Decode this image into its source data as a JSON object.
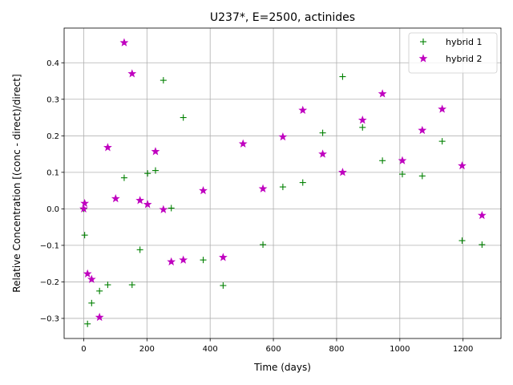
{
  "chart_data": {
    "type": "scatter",
    "title": "U237*, E=2500, actinides",
    "xlabel": "Time (days)",
    "ylabel": "Relative Concentration [(conc - direct)/direct]",
    "xlim": [
      -62,
      1320
    ],
    "ylim": [
      -0.355,
      0.495
    ],
    "xticks": [
      0,
      200,
      400,
      600,
      800,
      1000,
      1200
    ],
    "yticks": [
      -0.3,
      -0.2,
      -0.1,
      0.0,
      0.1,
      0.2,
      0.3,
      0.4
    ],
    "xtick_labels": [
      "0",
      "200",
      "400",
      "600",
      "800",
      "1000",
      "1200"
    ],
    "ytick_labels": [
      "−0.3",
      "−0.2",
      "−0.1",
      "0.0",
      "0.1",
      "0.2",
      "0.3",
      "0.4"
    ],
    "grid": true,
    "legend_position": "top-right",
    "series": [
      {
        "name": "hybrid 1",
        "color": "#008000",
        "marker": "plus",
        "x": [
          0,
          3,
          12,
          25,
          50,
          76,
          128,
          153,
          178,
          202,
          227,
          252,
          277,
          315,
          378,
          441,
          567,
          630,
          693,
          756,
          819,
          882,
          945,
          1008,
          1071,
          1134,
          1197,
          1260
        ],
        "y": [
          0.0,
          -0.072,
          -0.315,
          -0.258,
          -0.225,
          -0.208,
          0.085,
          -0.208,
          -0.112,
          0.097,
          0.105,
          0.352,
          0.002,
          0.25,
          -0.14,
          -0.21,
          -0.098,
          0.06,
          0.072,
          0.208,
          0.362,
          0.223,
          0.132,
          0.095,
          0.09,
          0.185,
          -0.087,
          -0.098
        ]
      },
      {
        "name": "hybrid 2",
        "color": "#bf00bf",
        "marker": "star",
        "x": [
          0,
          3,
          12,
          25,
          50,
          76,
          101,
          128,
          153,
          178,
          202,
          227,
          252,
          277,
          315,
          378,
          441,
          504,
          567,
          630,
          693,
          756,
          819,
          882,
          945,
          1008,
          1071,
          1134,
          1197,
          1260
        ],
        "y": [
          0.0,
          0.015,
          -0.178,
          -0.193,
          -0.297,
          0.168,
          0.028,
          0.455,
          0.37,
          0.023,
          0.012,
          0.157,
          -0.002,
          -0.145,
          -0.14,
          0.05,
          -0.133,
          0.178,
          0.055,
          0.197,
          0.27,
          0.15,
          0.1,
          0.243,
          0.315,
          0.132,
          0.215,
          0.273,
          0.118,
          -0.018
        ]
      }
    ]
  }
}
